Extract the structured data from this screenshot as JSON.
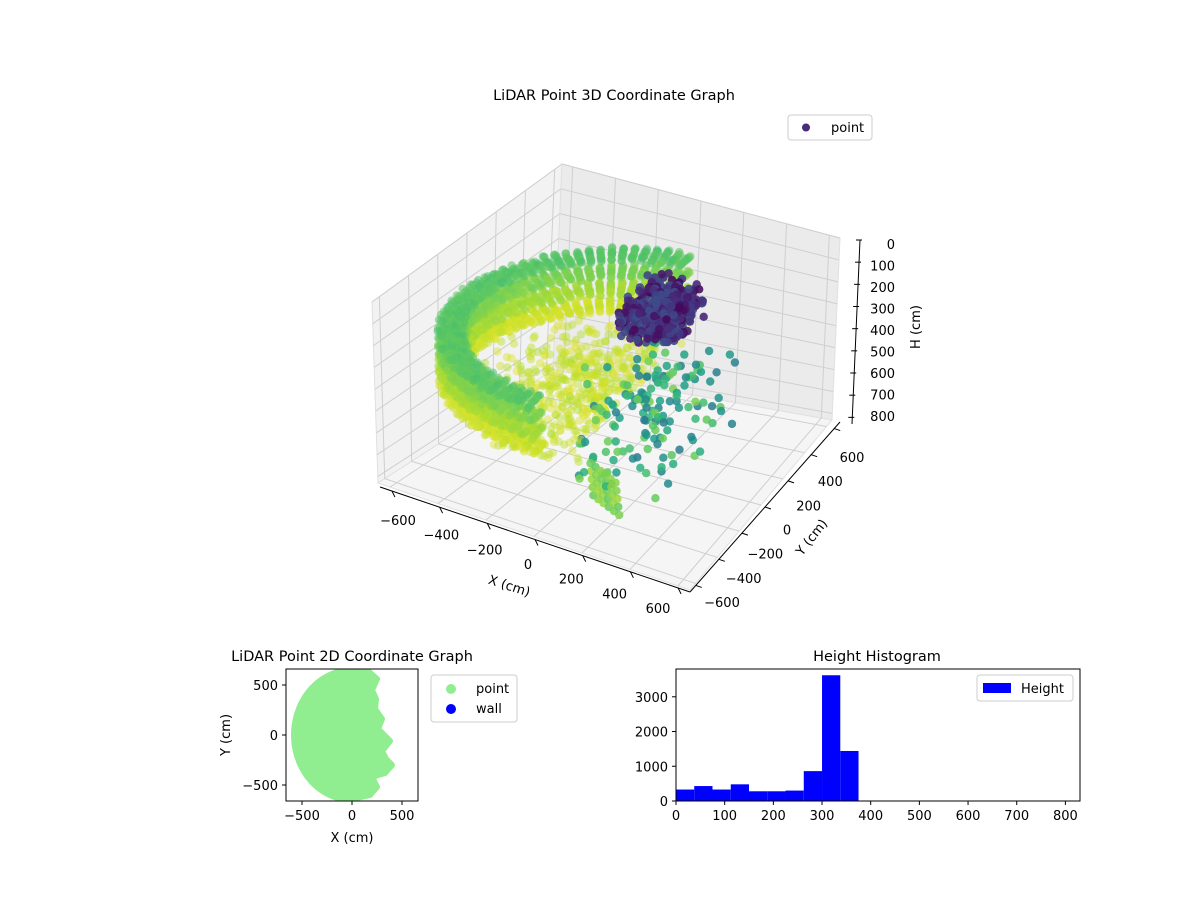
{
  "chart_data": [
    {
      "type": "scatter",
      "title": "LiDAR Point 3D Coordinate Graph",
      "xlabel": "X (cm)",
      "ylabel": "Y (cm)",
      "zlabel": "H (cm)",
      "xticks": [
        "−600",
        "−400",
        "−200",
        "0",
        "200",
        "400",
        "600"
      ],
      "yticks": [
        "−600",
        "−400",
        "−200",
        "0",
        "200",
        "400",
        "600"
      ],
      "zticks": [
        "0",
        "100",
        "200",
        "300",
        "400",
        "500",
        "600",
        "700",
        "800"
      ],
      "xlim": [
        -650,
        650
      ],
      "ylim": [
        -650,
        650
      ],
      "zlim": [
        0,
        830
      ],
      "z_axis_inverted": true,
      "colormap": "viridis",
      "legend": [
        "point"
      ],
      "legend_position": "top-right",
      "grid": true
    },
    {
      "type": "scatter",
      "title": "LiDAR Point 2D Coordinate Graph",
      "xlabel": "X (cm)",
      "ylabel": "Y (cm)",
      "xticks": [
        "−500",
        "0",
        "500"
      ],
      "yticks": [
        "−500",
        "0",
        "500"
      ],
      "xlim": [
        -660,
        660
      ],
      "ylim": [
        -660,
        660
      ],
      "series": [
        {
          "name": "point",
          "color": "#90ee90"
        },
        {
          "name": "wall",
          "color": "#0000ff"
        }
      ],
      "legend_position": "outside-right"
    },
    {
      "type": "bar",
      "title": "Height Histogram",
      "series_name": "Height",
      "color": "#0000ff",
      "bin_edges": [
        0,
        37.5,
        75,
        112.5,
        150,
        187.5,
        225,
        262.5,
        300,
        337.5,
        375
      ],
      "values": [
        330,
        430,
        330,
        480,
        280,
        280,
        300,
        860,
        3620,
        1440
      ],
      "xticks": [
        "0",
        "100",
        "200",
        "300",
        "400",
        "500",
        "600",
        "700",
        "800"
      ],
      "yticks": [
        "0",
        "1000",
        "2000",
        "3000"
      ],
      "xlim": [
        0,
        830
      ],
      "ylim": [
        0,
        3800
      ],
      "legend_position": "top-right"
    }
  ]
}
